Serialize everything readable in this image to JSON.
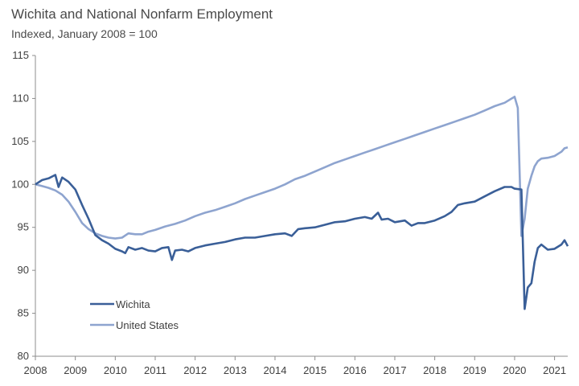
{
  "colors": {
    "wichita": "#3a5f98",
    "us": "#8ea4cf",
    "axis": "#8c8c8c"
  },
  "chart_data": {
    "type": "line",
    "title": "Wichita and National Nonfarm Employment",
    "subtitle": "Indexed, January  2008 = 100",
    "xlim": [
      2008,
      2021.33
    ],
    "ylim": [
      80,
      115
    ],
    "yticks": [
      80,
      85,
      90,
      95,
      100,
      105,
      110,
      115
    ],
    "xticks": [
      2008,
      2009,
      2010,
      2011,
      2012,
      2013,
      2014,
      2015,
      2016,
      2017,
      2018,
      2019,
      2020,
      2021
    ],
    "legend": {
      "placement": "bottom-left"
    },
    "series": [
      {
        "name": "Wichita",
        "color": "#3a5f98",
        "x": [
          2008.0,
          2008.17,
          2008.33,
          2008.5,
          2008.58,
          2008.67,
          2008.83,
          2009.0,
          2009.17,
          2009.33,
          2009.5,
          2009.67,
          2009.83,
          2010.0,
          2010.17,
          2010.25,
          2010.33,
          2010.5,
          2010.67,
          2010.83,
          2011.0,
          2011.17,
          2011.33,
          2011.42,
          2011.5,
          2011.67,
          2011.83,
          2012.0,
          2012.25,
          2012.5,
          2012.75,
          2013.0,
          2013.25,
          2013.5,
          2013.75,
          2014.0,
          2014.25,
          2014.42,
          2014.58,
          2014.75,
          2015.0,
          2015.25,
          2015.5,
          2015.75,
          2016.0,
          2016.25,
          2016.42,
          2016.58,
          2016.67,
          2016.83,
          2017.0,
          2017.25,
          2017.42,
          2017.58,
          2017.75,
          2018.0,
          2018.25,
          2018.42,
          2018.58,
          2018.75,
          2019.0,
          2019.25,
          2019.5,
          2019.75,
          2019.92,
          2020.0,
          2020.17,
          2020.25,
          2020.33,
          2020.42,
          2020.5,
          2020.58,
          2020.67,
          2020.83,
          2021.0,
          2021.17,
          2021.25,
          2021.33
        ],
        "values": [
          100.0,
          100.5,
          100.7,
          101.1,
          99.7,
          100.8,
          100.3,
          99.4,
          97.6,
          96.0,
          94.1,
          93.5,
          93.1,
          92.5,
          92.2,
          92.0,
          92.7,
          92.4,
          92.6,
          92.3,
          92.2,
          92.6,
          92.7,
          91.2,
          92.3,
          92.4,
          92.2,
          92.6,
          92.9,
          93.1,
          93.3,
          93.6,
          93.8,
          93.8,
          94.0,
          94.2,
          94.3,
          94.0,
          94.8,
          94.9,
          95.0,
          95.3,
          95.6,
          95.7,
          96.0,
          96.2,
          96.0,
          96.7,
          95.9,
          96.0,
          95.6,
          95.8,
          95.2,
          95.5,
          95.5,
          95.8,
          96.3,
          96.8,
          97.6,
          97.8,
          98.0,
          98.6,
          99.2,
          99.7,
          99.7,
          99.5,
          99.4,
          85.5,
          88.0,
          88.5,
          91.0,
          92.6,
          93.0,
          92.4,
          92.5,
          93.0,
          93.5,
          92.8
        ]
      },
      {
        "name": "United States",
        "color": "#8ea4cf",
        "x": [
          2008.0,
          2008.17,
          2008.33,
          2008.5,
          2008.67,
          2008.83,
          2009.0,
          2009.17,
          2009.33,
          2009.5,
          2009.67,
          2009.83,
          2010.0,
          2010.17,
          2010.33,
          2010.5,
          2010.67,
          2010.83,
          2011.0,
          2011.25,
          2011.5,
          2011.75,
          2012.0,
          2012.25,
          2012.5,
          2012.75,
          2013.0,
          2013.25,
          2013.5,
          2013.75,
          2014.0,
          2014.25,
          2014.5,
          2014.75,
          2015.0,
          2015.25,
          2015.5,
          2015.75,
          2016.0,
          2016.25,
          2016.5,
          2016.75,
          2017.0,
          2017.25,
          2017.5,
          2017.75,
          2018.0,
          2018.25,
          2018.5,
          2018.75,
          2019.0,
          2019.25,
          2019.5,
          2019.75,
          2020.0,
          2020.08,
          2020.17,
          2020.25,
          2020.33,
          2020.42,
          2020.5,
          2020.58,
          2020.67,
          2020.83,
          2021.0,
          2021.17,
          2021.25,
          2021.33
        ],
        "values": [
          100.0,
          99.8,
          99.6,
          99.3,
          98.8,
          98.0,
          96.8,
          95.5,
          94.8,
          94.3,
          94.0,
          93.8,
          93.7,
          93.8,
          94.3,
          94.2,
          94.2,
          94.5,
          94.7,
          95.1,
          95.4,
          95.8,
          96.3,
          96.7,
          97.0,
          97.4,
          97.8,
          98.3,
          98.7,
          99.1,
          99.5,
          100.0,
          100.6,
          101.0,
          101.5,
          102.0,
          102.5,
          102.9,
          103.3,
          103.7,
          104.1,
          104.5,
          104.9,
          105.3,
          105.7,
          106.1,
          106.5,
          106.9,
          107.3,
          107.7,
          108.1,
          108.6,
          109.1,
          109.5,
          110.2,
          108.9,
          94.0,
          96.0,
          99.5,
          101.0,
          102.1,
          102.7,
          103.0,
          103.1,
          103.3,
          103.8,
          104.2,
          104.3
        ]
      }
    ]
  }
}
